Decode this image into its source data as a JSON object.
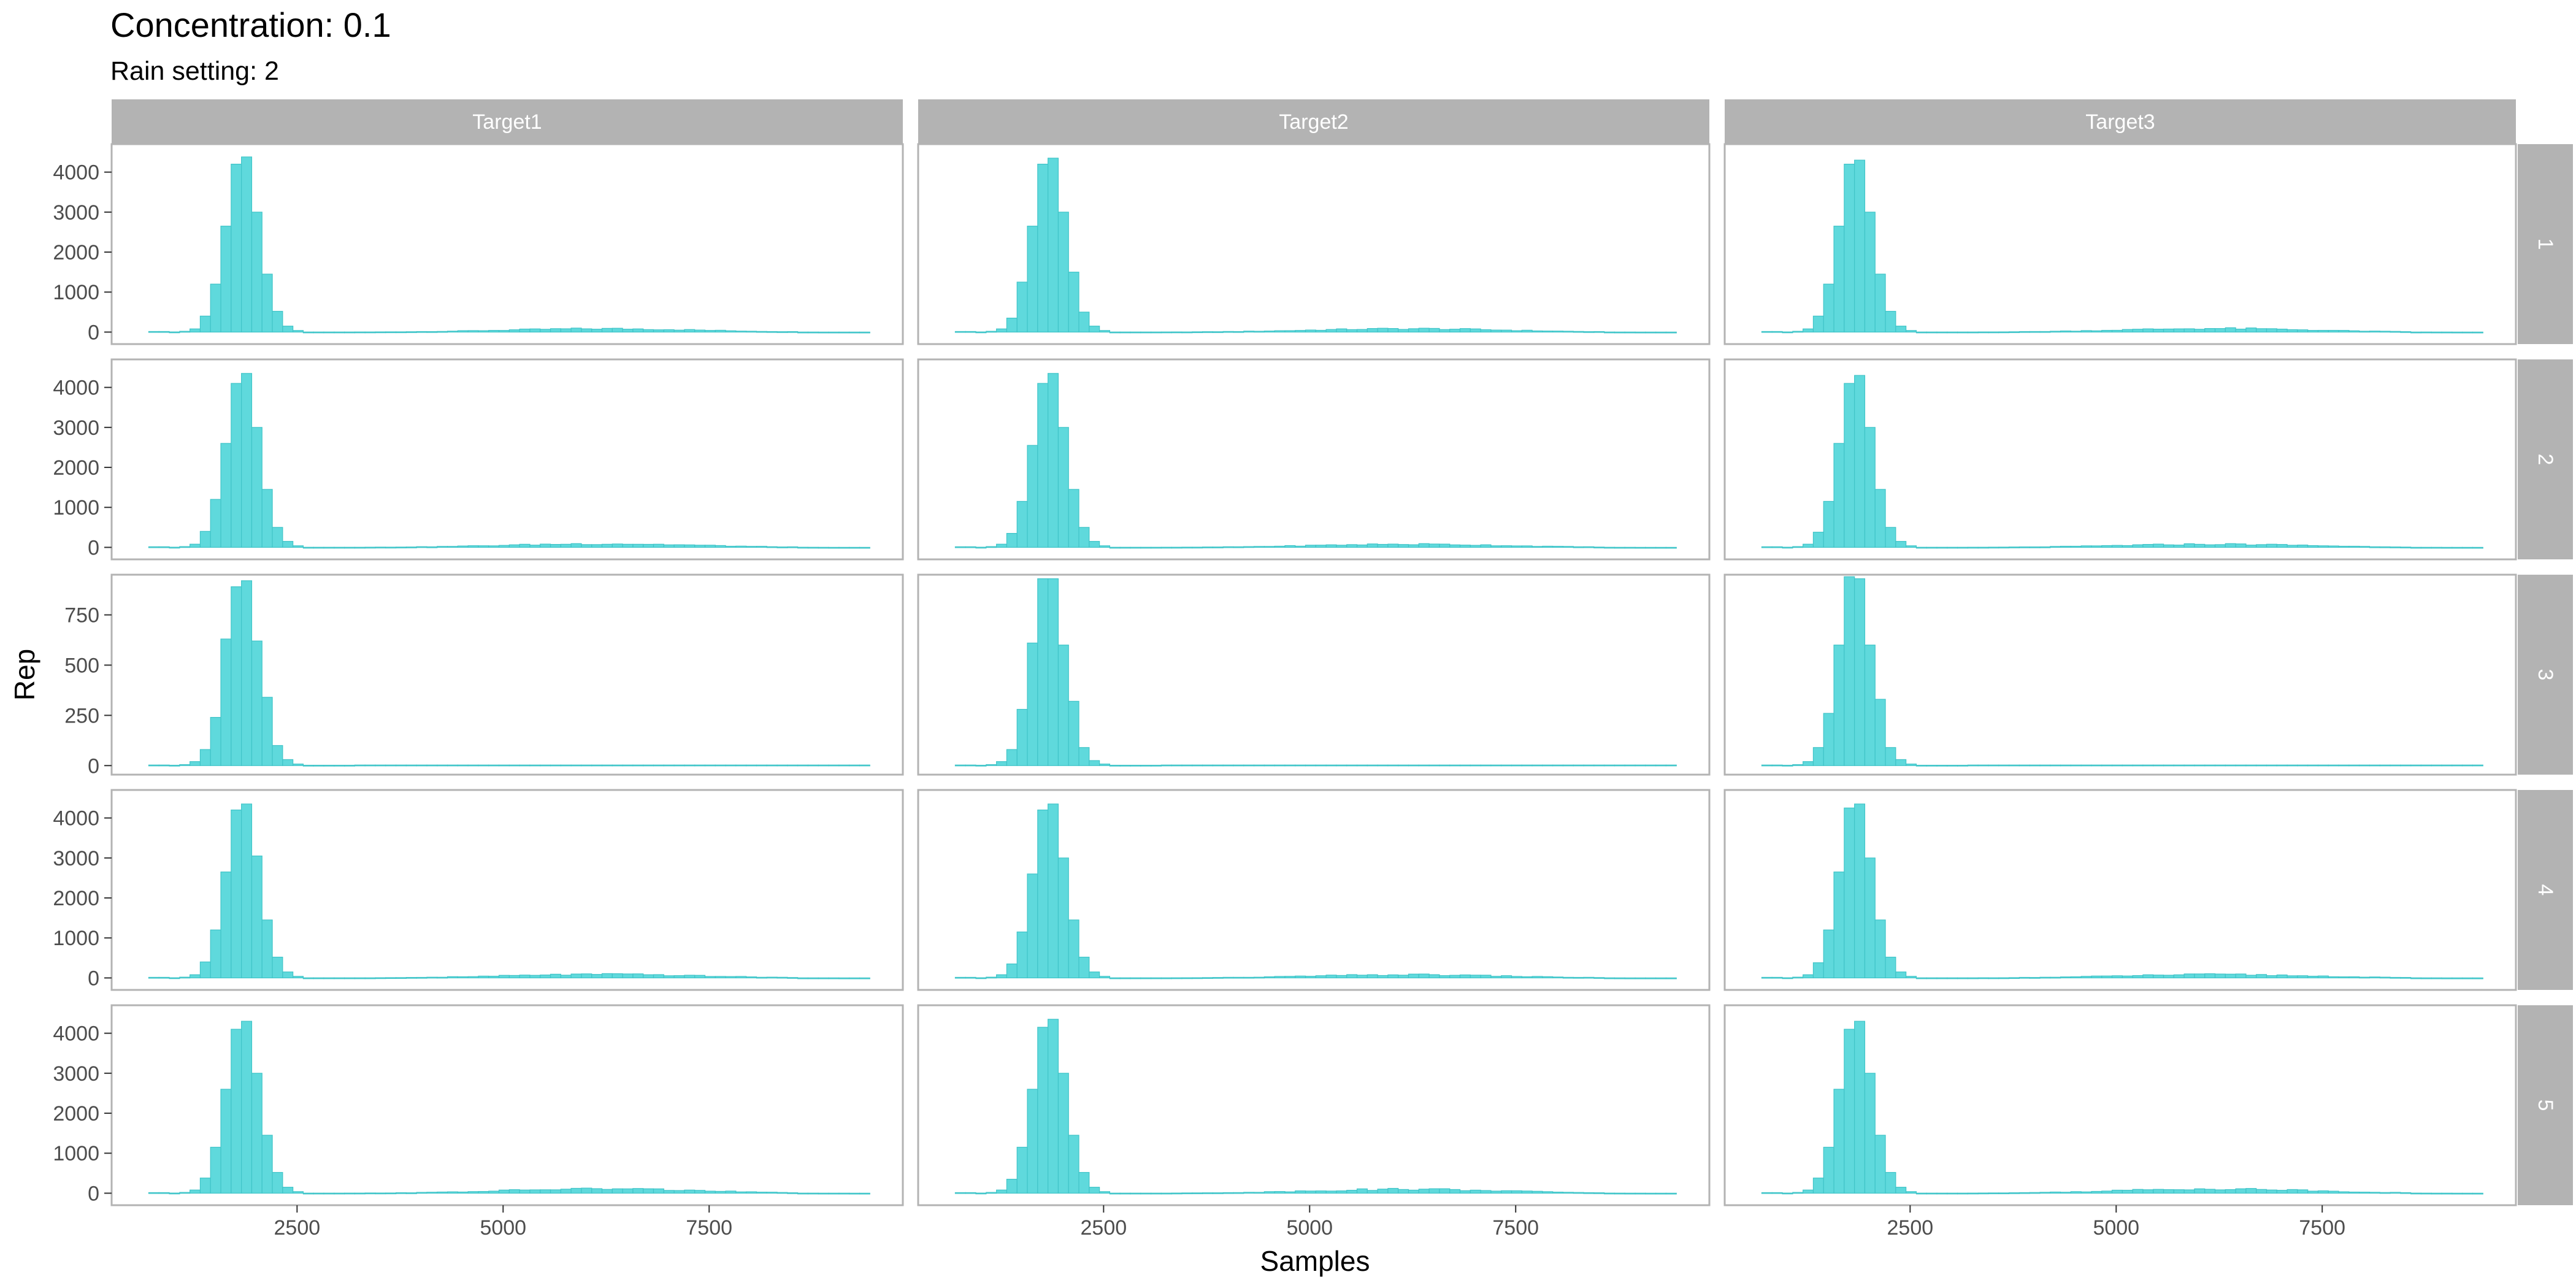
{
  "chart_data": {
    "type": "bar",
    "title": "Concentration: 0.1",
    "subtitle": "Rain setting: 2",
    "xlabel": "Samples",
    "ylabel": "Rep",
    "xlim": [
      250,
      9850
    ],
    "x_ticks": [
      2500,
      5000,
      7500
    ],
    "x_tick_labels": [
      "2500",
      "5000",
      "7500"
    ],
    "grid": false,
    "bar_color": "#5fd9dc",
    "bar_outline": "#40c4c8",
    "strip_color": "#b3b3b3",
    "strip_text_color": "#ffffff",
    "panel_border_color": "#b3b3b3",
    "columns": [
      "Target1",
      "Target2",
      "Target3"
    ],
    "rows": [
      {
        "label": "1",
        "ylim": [
          -300,
          4700
        ],
        "y_ticks": [
          0,
          1000,
          2000,
          3000,
          4000
        ],
        "y_tick_labels": [
          "0",
          "1000",
          "2000",
          "3000",
          "4000"
        ]
      },
      {
        "label": "2",
        "ylim": [
          -300,
          4700
        ],
        "y_ticks": [
          0,
          1000,
          2000,
          3000,
          4000
        ],
        "y_tick_labels": [
          "0",
          "1000",
          "2000",
          "3000",
          "4000"
        ]
      },
      {
        "label": "3",
        "ylim": [
          -45,
          950
        ],
        "y_ticks": [
          0,
          250,
          500,
          750
        ],
        "y_tick_labels": [
          "0",
          "250",
          "500",
          "750"
        ]
      },
      {
        "label": "4",
        "ylim": [
          -300,
          4700
        ],
        "y_ticks": [
          0,
          1000,
          2000,
          3000,
          4000
        ],
        "y_tick_labels": [
          "0",
          "1000",
          "2000",
          "3000",
          "4000"
        ]
      },
      {
        "label": "5",
        "ylim": [
          -300,
          4700
        ],
        "y_ticks": [
          0,
          1000,
          2000,
          3000,
          4000
        ],
        "y_tick_labels": [
          "0",
          "1000",
          "2000",
          "3000",
          "4000"
        ]
      }
    ],
    "bins": {
      "start": 700,
      "width": 125,
      "count": 70
    },
    "panels": [
      {
        "row": "1",
        "column": "Target1",
        "peak_counts": [
          0,
          0,
          5,
          20,
          80,
          400,
          1200,
          2650,
          4200,
          4380,
          3000,
          1450,
          520,
          150,
          40
        ],
        "tail_level": 85
      },
      {
        "row": "1",
        "column": "Target2",
        "peak_counts": [
          0,
          0,
          5,
          20,
          80,
          350,
          1250,
          2650,
          4200,
          4350,
          3000,
          1500,
          500,
          150,
          40
        ],
        "tail_level": 85
      },
      {
        "row": "1",
        "column": "Target3",
        "peak_counts": [
          0,
          0,
          5,
          20,
          80,
          400,
          1200,
          2650,
          4200,
          4300,
          3000,
          1450,
          520,
          150,
          40
        ],
        "tail_level": 90
      },
      {
        "row": "2",
        "column": "Target1",
        "peak_counts": [
          0,
          0,
          5,
          20,
          80,
          400,
          1200,
          2600,
          4100,
          4350,
          3000,
          1450,
          500,
          150,
          40
        ],
        "tail_level": 90
      },
      {
        "row": "2",
        "column": "Target2",
        "peak_counts": [
          0,
          0,
          5,
          20,
          80,
          350,
          1150,
          2550,
          4100,
          4350,
          3000,
          1450,
          500,
          150,
          40
        ],
        "tail_level": 80
      },
      {
        "row": "2",
        "column": "Target3",
        "peak_counts": [
          0,
          0,
          5,
          20,
          80,
          380,
          1150,
          2600,
          4100,
          4300,
          3000,
          1450,
          500,
          150,
          40
        ],
        "tail_level": 80
      },
      {
        "row": "3",
        "column": "Target1",
        "peak_counts": [
          0,
          0,
          2,
          5,
          20,
          80,
          240,
          630,
          890,
          920,
          620,
          340,
          100,
          30,
          8
        ],
        "tail_level": 0
      },
      {
        "row": "3",
        "column": "Target2",
        "peak_counts": [
          0,
          0,
          2,
          5,
          20,
          80,
          280,
          610,
          930,
          930,
          600,
          320,
          90,
          25,
          8
        ],
        "tail_level": 0
      },
      {
        "row": "3",
        "column": "Target3",
        "peak_counts": [
          0,
          0,
          2,
          5,
          20,
          90,
          260,
          600,
          940,
          930,
          600,
          330,
          90,
          30,
          8
        ],
        "tail_level": 0
      },
      {
        "row": "4",
        "column": "Target1",
        "peak_counts": [
          0,
          0,
          5,
          20,
          80,
          400,
          1200,
          2650,
          4200,
          4350,
          3050,
          1450,
          520,
          150,
          40
        ],
        "tail_level": 90
      },
      {
        "row": "4",
        "column": "Target2",
        "peak_counts": [
          0,
          0,
          5,
          20,
          80,
          350,
          1150,
          2600,
          4200,
          4350,
          3000,
          1450,
          520,
          150,
          40
        ],
        "tail_level": 80
      },
      {
        "row": "4",
        "column": "Target3",
        "peak_counts": [
          0,
          0,
          5,
          20,
          80,
          380,
          1200,
          2650,
          4250,
          4350,
          3000,
          1450,
          520,
          150,
          40
        ],
        "tail_level": 85
      },
      {
        "row": "5",
        "column": "Target1",
        "peak_counts": [
          0,
          0,
          5,
          20,
          80,
          380,
          1150,
          2600,
          4100,
          4300,
          3000,
          1450,
          520,
          150,
          40
        ],
        "tail_level": 110
      },
      {
        "row": "5",
        "column": "Target2",
        "peak_counts": [
          0,
          0,
          5,
          20,
          80,
          350,
          1150,
          2600,
          4150,
          4350,
          3000,
          1450,
          520,
          150,
          40
        ],
        "tail_level": 100
      },
      {
        "row": "5",
        "column": "Target3",
        "peak_counts": [
          0,
          0,
          5,
          20,
          80,
          380,
          1150,
          2600,
          4100,
          4300,
          3000,
          1450,
          520,
          150,
          40
        ],
        "tail_level": 110
      }
    ]
  }
}
